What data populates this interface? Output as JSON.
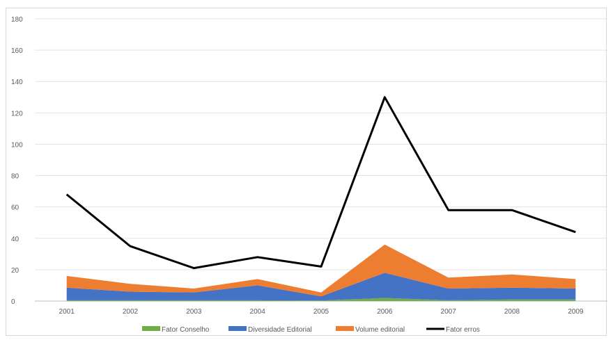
{
  "chart_data": {
    "type": "area",
    "categories": [
      "2001",
      "2002",
      "2003",
      "2004",
      "2005",
      "2006",
      "2007",
      "2008",
      "2009"
    ],
    "ylim": [
      0,
      180
    ],
    "yticks": [
      0,
      20,
      40,
      60,
      80,
      100,
      120,
      140,
      160,
      180
    ],
    "grid": true,
    "legend_position": "bottom",
    "stacked_areas": [
      {
        "name": "Fator Conselho",
        "color": "#70ad47",
        "values": [
          0.5,
          0.5,
          0.5,
          0.5,
          0.3,
          2,
          0.5,
          1,
          1
        ]
      },
      {
        "name": "Diversidade Editorial",
        "color": "#4472c4",
        "values": [
          8,
          5.5,
          5,
          9.5,
          2.7,
          16,
          7.5,
          7.5,
          7
        ]
      },
      {
        "name": "Volume editorial",
        "color": "#ed7d31",
        "values": [
          7.5,
          5,
          2.5,
          4,
          2.5,
          18,
          7,
          8.5,
          6
        ]
      }
    ],
    "lines": [
      {
        "name": "Fator erros",
        "color": "#000000",
        "values": [
          68,
          35,
          21,
          28,
          22,
          130,
          58,
          58,
          44
        ]
      }
    ]
  }
}
